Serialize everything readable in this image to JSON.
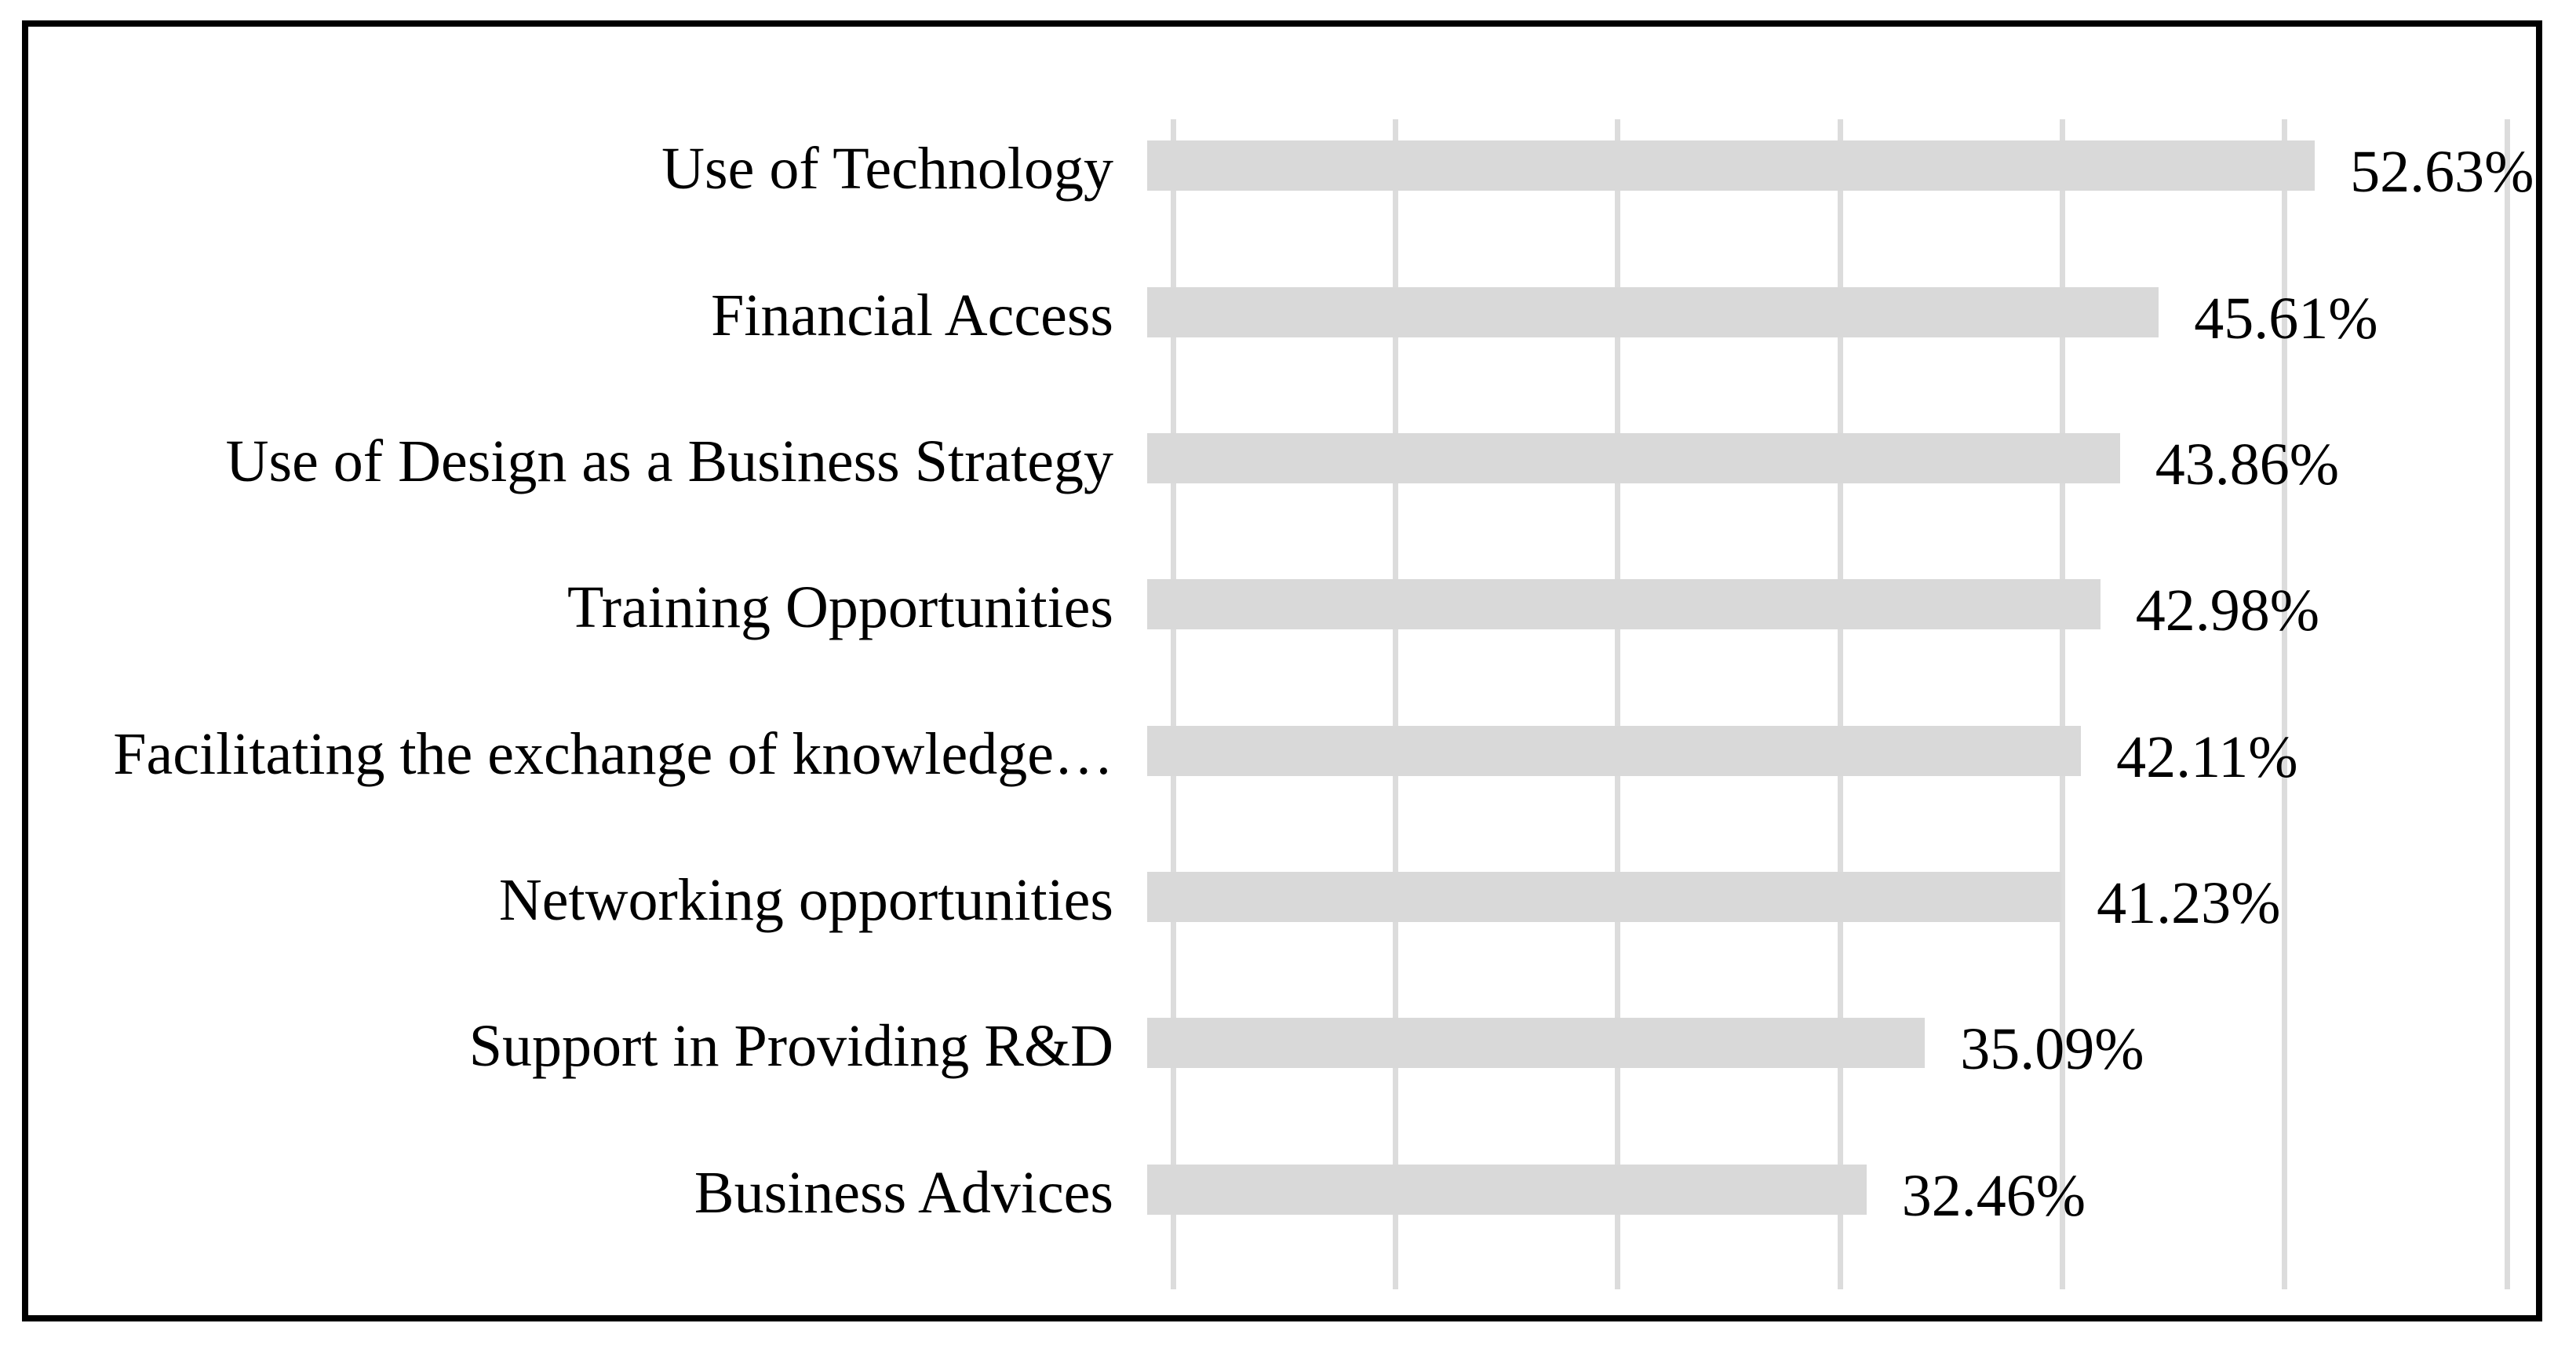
{
  "chart_data": {
    "type": "bar",
    "orientation": "horizontal",
    "title": "",
    "xlabel": "",
    "ylabel": "",
    "categories": [
      "Use of Technology",
      "Financial Access",
      "Use of Design as a Business Strategy",
      "Training Opportunities",
      "Facilitating the exchange of knowledge…",
      "Networking opportunities",
      "Support in Providing R&D",
      "Business Advices"
    ],
    "values": [
      52.63,
      45.61,
      43.86,
      42.98,
      42.11,
      41.23,
      35.09,
      32.46
    ],
    "value_labels": [
      "52.63%",
      "45.61%",
      "43.86%",
      "42.98%",
      "42.11%",
      "41.23%",
      "35.09%",
      "32.46%"
    ],
    "xlim": [
      0,
      60
    ],
    "gridline_step": 10,
    "grid": "vertical-gridlines-only",
    "axis_tick_labels_visible": false,
    "legend": "none",
    "data_labels_visible": true,
    "bar_color": "#d9d9d9",
    "gridline_color": "#dcdcdc",
    "text_color": "#000000",
    "frame_border_color": "#000000",
    "background_color": "#ffffff"
  }
}
